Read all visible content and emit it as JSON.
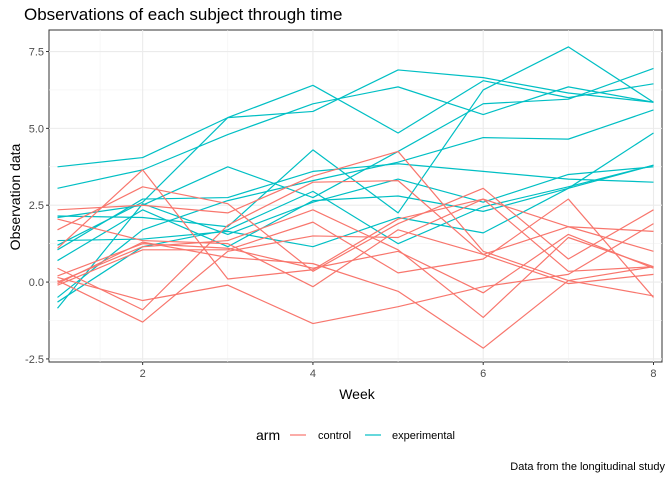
{
  "chart_data": {
    "type": "line",
    "title": "Observations of each subject through time",
    "xlabel": "Week",
    "ylabel": "Observation data",
    "caption": "Data from the longitudinal study",
    "xlim": [
      0.9,
      8.1
    ],
    "ylim": [
      -2.6,
      8.2
    ],
    "x_ticks": [
      2,
      4,
      6,
      8
    ],
    "y_ticks": [
      -2.5,
      0.0,
      2.5,
      5.0,
      7.5
    ],
    "x_tick_labels": [
      "2",
      "4",
      "6",
      "8"
    ],
    "y_tick_labels": [
      "-2.5",
      "0.0",
      "2.5",
      "5.0",
      "7.5"
    ],
    "grid": true,
    "legend": {
      "title": "arm",
      "position": "bottom",
      "entries": [
        {
          "label": "control",
          "color": "#F8766D"
        },
        {
          "label": "experimental",
          "color": "#00BFC4"
        }
      ]
    },
    "x": [
      1,
      2,
      3,
      4,
      5,
      6,
      7,
      8
    ],
    "series": [
      {
        "group": "control",
        "values": [
          2.35,
          2.5,
          2.25,
          3.45,
          4.25,
          1.0,
          0.05,
          -0.45
        ]
      },
      {
        "group": "control",
        "values": [
          1.1,
          3.65,
          0.1,
          0.4,
          2.05,
          2.7,
          1.8,
          1.65
        ]
      },
      {
        "group": "control",
        "values": [
          0.05,
          -1.3,
          1.0,
          1.5,
          1.45,
          2.7,
          0.35,
          0.5
        ]
      },
      {
        "group": "control",
        "values": [
          0.2,
          1.25,
          1.1,
          0.45,
          1.0,
          -0.35,
          1.55,
          0.45
        ]
      },
      {
        "group": "control",
        "values": [
          -0.1,
          1.05,
          1.05,
          1.95,
          0.3,
          0.75,
          2.7,
          -0.5
        ]
      },
      {
        "group": "control",
        "values": [
          0.45,
          -0.9,
          1.85,
          3.25,
          3.3,
          0.9,
          1.8,
          1.0
        ]
      },
      {
        "group": "control",
        "values": [
          2.05,
          1.35,
          1.25,
          -0.15,
          1.7,
          0.9,
          -0.05,
          0.25
        ]
      },
      {
        "group": "control",
        "values": [
          1.7,
          3.1,
          2.55,
          0.35,
          1.9,
          3.05,
          0.75,
          2.35
        ]
      },
      {
        "group": "control",
        "values": [
          0.0,
          1.15,
          1.35,
          2.35,
          1.05,
          -1.15,
          1.45,
          0.5
        ]
      },
      {
        "group": "control",
        "values": [
          0.15,
          -0.6,
          -0.1,
          -1.35,
          -0.8,
          -0.15,
          0.25,
          1.9
        ]
      },
      {
        "group": "control",
        "values": [
          -0.05,
          1.3,
          0.8,
          0.6,
          -0.3,
          -2.15,
          0.05,
          0.5
        ]
      },
      {
        "group": "experimental",
        "values": [
          3.75,
          4.05,
          5.35,
          5.55,
          6.9,
          6.65,
          6.15,
          5.85
        ]
      },
      {
        "group": "experimental",
        "values": [
          3.05,
          3.65,
          4.8,
          5.8,
          6.35,
          5.45,
          6.35,
          5.85
        ]
      },
      {
        "group": "experimental",
        "values": [
          1.2,
          2.6,
          5.35,
          6.4,
          4.85,
          6.55,
          6.0,
          6.45
        ]
      },
      {
        "group": "experimental",
        "values": [
          2.1,
          2.5,
          3.75,
          2.75,
          4.25,
          5.8,
          5.95,
          6.95
        ]
      },
      {
        "group": "experimental",
        "values": [
          2.15,
          2.1,
          1.8,
          4.3,
          2.25,
          6.25,
          7.65,
          5.85
        ]
      },
      {
        "group": "experimental",
        "values": [
          -0.5,
          1.7,
          2.65,
          3.3,
          3.9,
          4.7,
          4.65,
          5.6
        ]
      },
      {
        "group": "experimental",
        "values": [
          1.05,
          2.7,
          2.75,
          3.6,
          3.85,
          3.6,
          3.35,
          3.25
        ]
      },
      {
        "group": "experimental",
        "values": [
          -0.85,
          2.55,
          1.55,
          2.6,
          3.35,
          2.6,
          3.5,
          3.75
        ]
      },
      {
        "group": "experimental",
        "values": [
          0.7,
          2.35,
          1.15,
          2.65,
          2.8,
          2.3,
          3.05,
          4.85
        ]
      },
      {
        "group": "experimental",
        "values": [
          1.35,
          1.4,
          1.65,
          1.15,
          2.1,
          1.6,
          3.05,
          3.8
        ]
      },
      {
        "group": "experimental",
        "values": [
          -0.65,
          1.15,
          1.7,
          2.95,
          1.25,
          2.45,
          3.1,
          3.8
        ]
      }
    ]
  }
}
